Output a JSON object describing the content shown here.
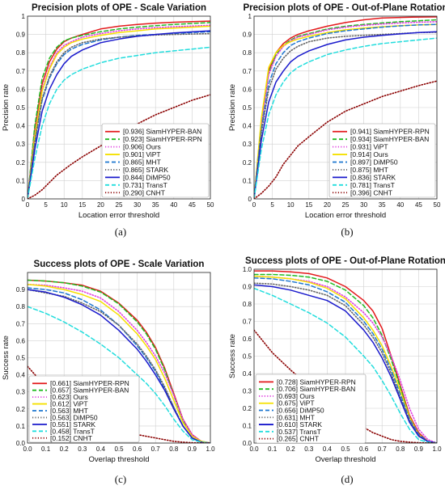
{
  "chart_data": [
    {
      "type": "line",
      "title": "Precision plots of OPE - Scale Variation",
      "xlabel": "Location error threshold",
      "ylabel": "Precision rate",
      "xlim": [
        0,
        50
      ],
      "ylim": [
        0,
        1
      ],
      "xticks": [
        "0",
        "5",
        "10",
        "15",
        "20",
        "25",
        "30",
        "35",
        "40",
        "45",
        "50"
      ],
      "yticks": [
        "0",
        "0.1",
        "0.2",
        "0.3",
        "0.4",
        "0.5",
        "0.6",
        "0.7",
        "0.8",
        "0.9",
        "1"
      ],
      "grid": true,
      "legend_position": "bottom-right",
      "caption": "(a)",
      "x": [
        0,
        2,
        4,
        6,
        8,
        10,
        12,
        15,
        20,
        25,
        30,
        35,
        40,
        45,
        50
      ],
      "series": [
        {
          "name": "[0.936] SiamHYPER-BAN",
          "color": "#e31a1c",
          "style": "solid",
          "values": [
            0,
            0.38,
            0.63,
            0.75,
            0.82,
            0.86,
            0.88,
            0.9,
            0.93,
            0.945,
            0.955,
            0.962,
            0.967,
            0.97,
            0.973
          ]
        },
        {
          "name": "[0.923] SiamHYPER-RPN",
          "color": "#22bb22",
          "style": "dashed",
          "values": [
            0,
            0.4,
            0.66,
            0.77,
            0.83,
            0.865,
            0.88,
            0.895,
            0.915,
            0.93,
            0.94,
            0.948,
            0.955,
            0.96,
            0.965
          ]
        },
        {
          "name": "[0.906] Ours",
          "color": "#e040e0",
          "style": "dotted",
          "values": [
            0,
            0.35,
            0.6,
            0.72,
            0.8,
            0.84,
            0.86,
            0.885,
            0.905,
            0.92,
            0.93,
            0.937,
            0.942,
            0.946,
            0.95
          ]
        },
        {
          "name": "[0.901] ViPT",
          "color": "#f5e000",
          "style": "solid",
          "values": [
            0,
            0.34,
            0.59,
            0.71,
            0.79,
            0.83,
            0.855,
            0.875,
            0.895,
            0.91,
            0.92,
            0.93,
            0.935,
            0.94,
            0.945
          ]
        },
        {
          "name": "[0.865] MHT",
          "color": "#1f77d0",
          "style": "dashed",
          "values": [
            0,
            0.3,
            0.54,
            0.66,
            0.74,
            0.79,
            0.82,
            0.845,
            0.87,
            0.885,
            0.895,
            0.9,
            0.905,
            0.91,
            0.915
          ]
        },
        {
          "name": "[0.865] STARK",
          "color": "#666666",
          "style": "dotted",
          "values": [
            0,
            0.31,
            0.55,
            0.67,
            0.75,
            0.8,
            0.83,
            0.855,
            0.875,
            0.885,
            0.892,
            0.897,
            0.9,
            0.902,
            0.905
          ]
        },
        {
          "name": "[0.844] DiMP50",
          "color": "#1a1acc",
          "style": "solid",
          "values": [
            0,
            0.27,
            0.48,
            0.6,
            0.68,
            0.74,
            0.78,
            0.815,
            0.855,
            0.875,
            0.89,
            0.9,
            0.908,
            0.914,
            0.92
          ]
        },
        {
          "name": "[0.731] TransT",
          "color": "#22dddd",
          "style": "dashed",
          "values": [
            0,
            0.22,
            0.4,
            0.52,
            0.6,
            0.65,
            0.68,
            0.71,
            0.745,
            0.77,
            0.785,
            0.8,
            0.81,
            0.82,
            0.83
          ]
        },
        {
          "name": "[0.290] CNHT",
          "color": "#8b0000",
          "style": "dotted",
          "values": [
            0,
            0.02,
            0.05,
            0.09,
            0.13,
            0.16,
            0.19,
            0.23,
            0.29,
            0.35,
            0.41,
            0.46,
            0.5,
            0.54,
            0.57
          ]
        }
      ]
    },
    {
      "type": "line",
      "title": "Precision plots of OPE - Out-of-Plane Rotation",
      "xlabel": "Location error threshold",
      "ylabel": "Precision rate",
      "xlim": [
        0,
        50
      ],
      "ylim": [
        0,
        1
      ],
      "xticks": [
        "0",
        "5",
        "10",
        "15",
        "20",
        "25",
        "30",
        "35",
        "40",
        "45",
        "50"
      ],
      "yticks": [
        "0",
        "0.1",
        "0.2",
        "0.3",
        "0.4",
        "0.5",
        "0.6",
        "0.7",
        "0.8",
        "0.9",
        "1"
      ],
      "grid": true,
      "legend_position": "bottom-right",
      "caption": "(b)",
      "x": [
        0,
        2,
        4,
        6,
        8,
        10,
        12,
        15,
        20,
        25,
        30,
        35,
        40,
        45,
        50
      ],
      "series": [
        {
          "name": "[0.941] SiamHYPER-RPN",
          "color": "#e31a1c",
          "style": "solid",
          "values": [
            0,
            0.42,
            0.7,
            0.8,
            0.85,
            0.88,
            0.9,
            0.92,
            0.945,
            0.965,
            0.98,
            0.99,
            0.993,
            0.995,
            0.996
          ]
        },
        {
          "name": "[0.934] SiamHYPER-BAN",
          "color": "#22bb22",
          "style": "dashed",
          "values": [
            0,
            0.42,
            0.69,
            0.79,
            0.84,
            0.87,
            0.89,
            0.905,
            0.93,
            0.945,
            0.955,
            0.963,
            0.97,
            0.975,
            0.98
          ]
        },
        {
          "name": "[0.931] ViPT",
          "color": "#e040e0",
          "style": "dotted",
          "values": [
            0,
            0.4,
            0.68,
            0.78,
            0.835,
            0.865,
            0.885,
            0.9,
            0.925,
            0.94,
            0.95,
            0.957,
            0.963,
            0.967,
            0.97
          ]
        },
        {
          "name": "[0.914] Ours",
          "color": "#f5e000",
          "style": "solid",
          "values": [
            0,
            0.44,
            0.72,
            0.8,
            0.84,
            0.86,
            0.875,
            0.89,
            0.91,
            0.925,
            0.935,
            0.942,
            0.948,
            0.952,
            0.955
          ]
        },
        {
          "name": "[0.897] DiMP50",
          "color": "#1f77d0",
          "style": "dashed",
          "values": [
            0,
            0.38,
            0.63,
            0.74,
            0.8,
            0.84,
            0.86,
            0.88,
            0.905,
            0.92,
            0.93,
            0.94,
            0.947,
            0.952,
            0.955
          ]
        },
        {
          "name": "[0.875] MHT",
          "color": "#666666",
          "style": "dotted",
          "values": [
            0,
            0.36,
            0.6,
            0.71,
            0.77,
            0.81,
            0.835,
            0.86,
            0.88,
            0.89,
            0.895,
            0.9,
            0.905,
            0.91,
            0.912
          ]
        },
        {
          "name": "[0.836] STARK",
          "color": "#1a1acc",
          "style": "solid",
          "values": [
            0,
            0.32,
            0.53,
            0.64,
            0.7,
            0.75,
            0.78,
            0.81,
            0.845,
            0.87,
            0.885,
            0.895,
            0.903,
            0.91,
            0.915
          ]
        },
        {
          "name": "[0.781] TransT",
          "color": "#22dddd",
          "style": "dashed",
          "values": [
            0,
            0.27,
            0.46,
            0.57,
            0.64,
            0.69,
            0.72,
            0.75,
            0.79,
            0.815,
            0.835,
            0.85,
            0.86,
            0.87,
            0.88
          ]
        },
        {
          "name": "[0.396] CNHT",
          "color": "#8b0000",
          "style": "dotted",
          "values": [
            0,
            0.03,
            0.07,
            0.12,
            0.19,
            0.24,
            0.29,
            0.34,
            0.42,
            0.48,
            0.52,
            0.56,
            0.59,
            0.62,
            0.645
          ]
        }
      ]
    },
    {
      "type": "line",
      "title": "Success plots of OPE - Scale Variation",
      "xlabel": "Overlap threshold",
      "ylabel": "Success rate",
      "xlim": [
        0,
        1
      ],
      "ylim": [
        0,
        1
      ],
      "xticks": [
        "0.0",
        "0.1",
        "0.2",
        "0.3",
        "0.4",
        "0.5",
        "0.6",
        "0.7",
        "0.8",
        "0.9",
        "1.0"
      ],
      "yticks": [
        "0.0",
        "0.1",
        "0.2",
        "0.3",
        "0.4",
        "0.5",
        "0.6",
        "0.7",
        "0.8",
        "0.9"
      ],
      "grid": true,
      "legend_position": "bottom-left",
      "caption": "(c)",
      "x": [
        0,
        0.1,
        0.2,
        0.3,
        0.4,
        0.5,
        0.6,
        0.65,
        0.7,
        0.75,
        0.8,
        0.85,
        0.9,
        0.95,
        1.0
      ],
      "series": [
        {
          "name": "[0.661] SiamHYPER-RPN",
          "color": "#e31a1c",
          "style": "solid",
          "values": [
            0.955,
            0.95,
            0.94,
            0.925,
            0.89,
            0.82,
            0.72,
            0.65,
            0.56,
            0.44,
            0.29,
            0.14,
            0.05,
            0.01,
            0
          ]
        },
        {
          "name": "[0.657] SiamHYPER-BAN",
          "color": "#22bb22",
          "style": "dashed",
          "values": [
            0.955,
            0.95,
            0.94,
            0.92,
            0.885,
            0.815,
            0.71,
            0.64,
            0.55,
            0.43,
            0.28,
            0.13,
            0.04,
            0.01,
            0
          ]
        },
        {
          "name": "[0.623] Ours",
          "color": "#e040e0",
          "style": "dotted",
          "values": [
            0.93,
            0.925,
            0.91,
            0.89,
            0.85,
            0.77,
            0.66,
            0.59,
            0.51,
            0.41,
            0.28,
            0.14,
            0.05,
            0.01,
            0
          ]
        },
        {
          "name": "[0.612] ViPT",
          "color": "#f5e000",
          "style": "solid",
          "values": [
            0.93,
            0.92,
            0.9,
            0.87,
            0.83,
            0.75,
            0.64,
            0.57,
            0.49,
            0.38,
            0.25,
            0.12,
            0.04,
            0.01,
            0
          ]
        },
        {
          "name": "[0.563] MHT",
          "color": "#1f77d0",
          "style": "dashed",
          "values": [
            0.91,
            0.9,
            0.88,
            0.84,
            0.78,
            0.69,
            0.57,
            0.5,
            0.42,
            0.32,
            0.21,
            0.1,
            0.03,
            0.005,
            0
          ]
        },
        {
          "name": "[0.563] DiMP50",
          "color": "#666666",
          "style": "dotted",
          "values": [
            0.9,
            0.88,
            0.86,
            0.82,
            0.77,
            0.69,
            0.58,
            0.51,
            0.43,
            0.33,
            0.21,
            0.1,
            0.03,
            0.005,
            0
          ]
        },
        {
          "name": "[0.551] STARK",
          "color": "#1a1acc",
          "style": "solid",
          "values": [
            0.9,
            0.885,
            0.855,
            0.81,
            0.75,
            0.66,
            0.55,
            0.48,
            0.4,
            0.31,
            0.2,
            0.1,
            0.03,
            0.005,
            0
          ]
        },
        {
          "name": "[0.458] TransT",
          "color": "#22dddd",
          "style": "dashed",
          "values": [
            0.8,
            0.76,
            0.71,
            0.65,
            0.58,
            0.5,
            0.4,
            0.35,
            0.29,
            0.22,
            0.14,
            0.07,
            0.02,
            0.005,
            0
          ]
        },
        {
          "name": "[0.152] CNHT",
          "color": "#8b0000",
          "style": "dotted",
          "values": [
            0.45,
            0.33,
            0.24,
            0.17,
            0.12,
            0.08,
            0.05,
            0.04,
            0.03,
            0.02,
            0.01,
            0.005,
            0.002,
            0.001,
            0
          ]
        }
      ]
    },
    {
      "type": "line",
      "title": "Success plots of OPE - Out-of-Plane Rotation",
      "xlabel": "Overlap threshold",
      "ylabel": "Success rate",
      "xlim": [
        0,
        1
      ],
      "ylim": [
        0,
        1
      ],
      "xticks": [
        "0.0",
        "0.1",
        "0.2",
        "0.3",
        "0.4",
        "0.5",
        "0.6",
        "0.7",
        "0.8",
        "0.9",
        "1.0"
      ],
      "yticks": [
        "0.0",
        "0.1",
        "0.2",
        "0.3",
        "0.4",
        "0.5",
        "0.6",
        "0.7",
        "0.8",
        "0.9",
        "1.0"
      ],
      "grid": true,
      "legend_position": "bottom-left",
      "caption": "(d)",
      "x": [
        0,
        0.1,
        0.2,
        0.3,
        0.4,
        0.5,
        0.6,
        0.65,
        0.7,
        0.75,
        0.8,
        0.85,
        0.9,
        0.95,
        1.0
      ],
      "series": [
        {
          "name": "[0.728] SiamHYPER-RPN",
          "color": "#e31a1c",
          "style": "solid",
          "values": [
            0.99,
            0.99,
            0.985,
            0.975,
            0.95,
            0.9,
            0.82,
            0.76,
            0.66,
            0.5,
            0.33,
            0.16,
            0.06,
            0.01,
            0
          ]
        },
        {
          "name": "[0.706] SiamHYPER-BAN",
          "color": "#22bb22",
          "style": "dashed",
          "values": [
            0.97,
            0.97,
            0.965,
            0.955,
            0.93,
            0.88,
            0.79,
            0.72,
            0.62,
            0.48,
            0.32,
            0.15,
            0.05,
            0.01,
            0
          ]
        },
        {
          "name": "[0.693] Ours",
          "color": "#e040e0",
          "style": "dotted",
          "values": [
            0.96,
            0.955,
            0.945,
            0.93,
            0.9,
            0.84,
            0.75,
            0.69,
            0.61,
            0.5,
            0.36,
            0.2,
            0.08,
            0.02,
            0
          ]
        },
        {
          "name": "[0.675] ViPT",
          "color": "#f5e000",
          "style": "solid",
          "values": [
            0.96,
            0.955,
            0.945,
            0.925,
            0.89,
            0.83,
            0.72,
            0.65,
            0.56,
            0.44,
            0.3,
            0.15,
            0.05,
            0.01,
            0
          ]
        },
        {
          "name": "[0.656] DiMP50",
          "color": "#1f77d0",
          "style": "dashed",
          "values": [
            0.95,
            0.945,
            0.93,
            0.91,
            0.87,
            0.81,
            0.7,
            0.63,
            0.54,
            0.42,
            0.28,
            0.14,
            0.05,
            0.01,
            0
          ]
        },
        {
          "name": "[0.631] MHT",
          "color": "#666666",
          "style": "dotted",
          "values": [
            0.92,
            0.915,
            0.9,
            0.88,
            0.85,
            0.79,
            0.68,
            0.61,
            0.52,
            0.4,
            0.26,
            0.13,
            0.04,
            0.01,
            0
          ]
        },
        {
          "name": "[0.610] STARK",
          "color": "#1a1acc",
          "style": "solid",
          "values": [
            0.91,
            0.9,
            0.88,
            0.85,
            0.82,
            0.76,
            0.65,
            0.58,
            0.49,
            0.38,
            0.25,
            0.12,
            0.04,
            0.01,
            0
          ]
        },
        {
          "name": "[0.537] TransT",
          "color": "#22dddd",
          "style": "dashed",
          "values": [
            0.89,
            0.85,
            0.8,
            0.75,
            0.69,
            0.61,
            0.5,
            0.44,
            0.36,
            0.27,
            0.17,
            0.08,
            0.02,
            0.005,
            0
          ]
        },
        {
          "name": "[0.265] CNHT",
          "color": "#8b0000",
          "style": "dotted",
          "values": [
            0.65,
            0.52,
            0.42,
            0.33,
            0.24,
            0.16,
            0.09,
            0.06,
            0.04,
            0.02,
            0.01,
            0.005,
            0.002,
            0.001,
            0
          ]
        }
      ]
    }
  ]
}
